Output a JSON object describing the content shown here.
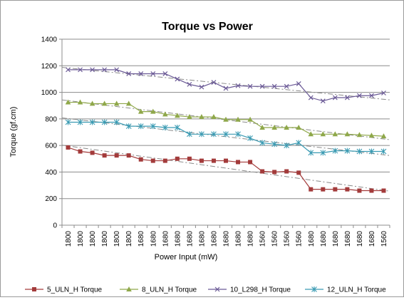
{
  "chart_data": {
    "type": "line",
    "title": "Torque vs Power",
    "xlabel": "Power Input (mW)",
    "ylabel": "Torque (gf.cm)",
    "ylim": [
      0,
      1400
    ],
    "yticks": [
      0,
      200,
      400,
      600,
      800,
      1000,
      1200,
      1400
    ],
    "grid": true,
    "legend": "bottom",
    "trendlines": "linear, dashed",
    "categories": [
      "1800",
      "1800",
      "1800",
      "1800",
      "1800",
      "1800",
      "1680",
      "1680",
      "1680",
      "1680",
      "1680",
      "1680",
      "1680",
      "1680",
      "1680",
      "1680",
      "1560",
      "1560",
      "1560",
      "1560",
      "1680",
      "1680",
      "1680",
      "1680",
      "1680",
      "1680",
      "1560"
    ],
    "series": [
      {
        "name": "5_ULN_H Torque",
        "color": "#a33b3b",
        "marker": "square",
        "values": [
          585,
          555,
          545,
          525,
          525,
          525,
          495,
          485,
          485,
          500,
          500,
          485,
          485,
          485,
          475,
          475,
          405,
          400,
          405,
          395,
          270,
          270,
          270,
          270,
          260,
          260,
          260
        ]
      },
      {
        "name": "8_ULN_H Torque",
        "color": "#8fa84a",
        "marker": "triangle",
        "values": [
          925,
          925,
          915,
          915,
          915,
          915,
          855,
          855,
          835,
          825,
          815,
          815,
          815,
          795,
          795,
          795,
          735,
          735,
          735,
          735,
          685,
          685,
          685,
          685,
          680,
          675,
          670
        ]
      },
      {
        "name": "10_L298_H Torque",
        "color": "#6b5a96",
        "marker": "x",
        "values": [
          1170,
          1170,
          1170,
          1170,
          1170,
          1140,
          1140,
          1140,
          1140,
          1100,
          1060,
          1040,
          1075,
          1030,
          1050,
          1045,
          1045,
          1045,
          1045,
          1065,
          960,
          935,
          960,
          960,
          975,
          975,
          995
        ]
      },
      {
        "name": "12_ULN_H Torque",
        "color": "#3b9bb3",
        "marker": "star",
        "values": [
          775,
          775,
          775,
          775,
          775,
          745,
          745,
          745,
          735,
          735,
          685,
          685,
          685,
          685,
          685,
          655,
          620,
          610,
          600,
          620,
          545,
          545,
          560,
          560,
          555,
          555,
          555
        ]
      }
    ]
  }
}
